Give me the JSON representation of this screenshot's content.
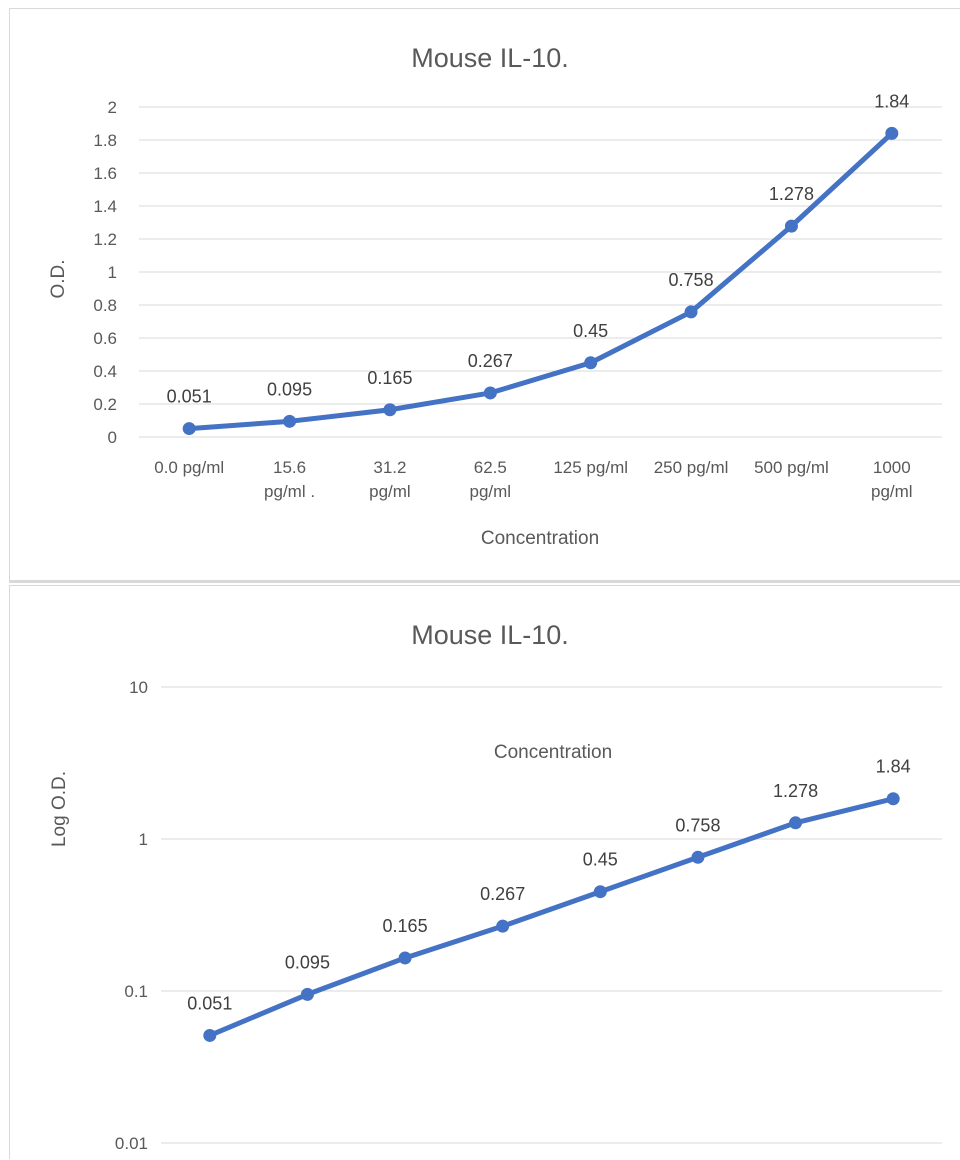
{
  "chart_data": [
    {
      "type": "line",
      "title": "Mouse IL-10.",
      "xlabel": "Concentration",
      "ylabel": "O.D.",
      "categories": [
        [
          "0.0 pg/ml"
        ],
        [
          "15.6",
          "pg/ml ."
        ],
        [
          "31.2",
          "pg/ml"
        ],
        [
          "62.5",
          "pg/ml"
        ],
        [
          "125 pg/ml"
        ],
        [
          "250 pg/ml"
        ],
        [
          "500 pg/ml"
        ],
        [
          "1000",
          "pg/ml"
        ]
      ],
      "values": [
        0.051,
        0.095,
        0.165,
        0.267,
        0.45,
        0.758,
        1.278,
        1.84
      ],
      "data_labels": [
        "0.051",
        "0.095",
        "0.165",
        "0.267",
        "0.45",
        "0.758",
        "1.278",
        "1.84"
      ],
      "ylim": [
        0,
        2
      ],
      "yticks": [
        0,
        0.2,
        0.4,
        0.6,
        0.8,
        1,
        1.2,
        1.4,
        1.6,
        1.8,
        2
      ],
      "ytick_labels": [
        "0",
        "0.2",
        "0.4",
        "0.6",
        "0.8",
        "1",
        "1.2",
        "1.4",
        "1.6",
        "1.8",
        "2"
      ],
      "yscale": "linear",
      "grid": true,
      "legend": "none",
      "color": "#4472c4"
    },
    {
      "type": "line",
      "title": "Mouse IL-10.",
      "xlabel": "Concentration",
      "ylabel": "Log O.D.",
      "values": [
        0.051,
        0.095,
        0.165,
        0.267,
        0.45,
        0.758,
        1.278,
        1.84
      ],
      "data_labels": [
        "0.051",
        "0.095",
        "0.165",
        "0.267",
        "0.45",
        "0.758",
        "1.278",
        "1.84"
      ],
      "ylim": [
        0.01,
        10
      ],
      "yticks": [
        0.01,
        0.1,
        1,
        10
      ],
      "ytick_labels": [
        "0.01",
        "0.1",
        "1",
        "10"
      ],
      "yscale": "log",
      "grid": true,
      "legend": "none",
      "color": "#4472c4"
    }
  ]
}
